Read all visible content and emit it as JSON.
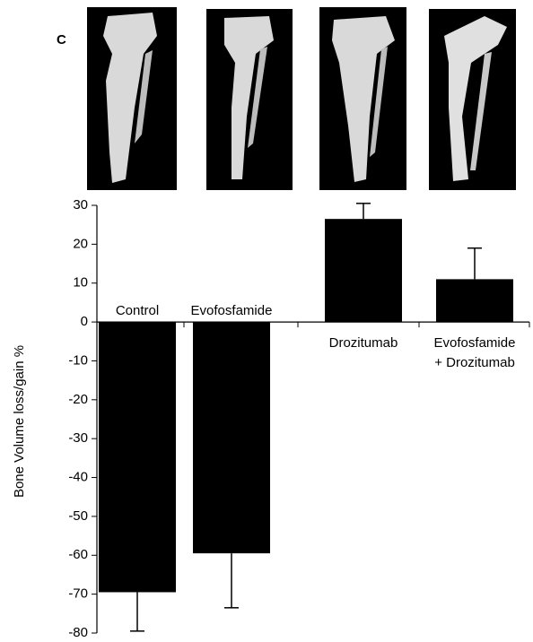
{
  "chart_data": {
    "type": "bar",
    "panel_label": "C",
    "ylabel": "Bone Volume loss/gain %",
    "categories": [
      "Control",
      "Evofosfamide",
      "Drozitumab",
      "Evofosfamide + Drozitumab"
    ],
    "values": [
      -69.5,
      -59.5,
      26.5,
      11
    ],
    "errors": [
      10,
      14,
      4,
      8
    ],
    "color": "#000000",
    "ylim": [
      -80,
      30
    ],
    "yticks": [
      -80,
      -70,
      -60,
      -50,
      -40,
      -30,
      -20,
      -10,
      0,
      10,
      20,
      30
    ]
  }
}
